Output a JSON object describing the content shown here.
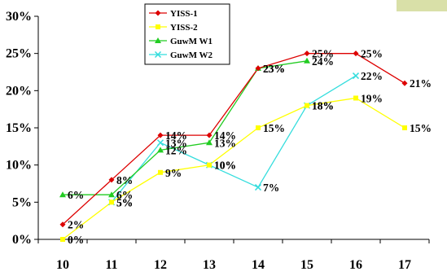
{
  "chart_data": {
    "type": "line",
    "categories": [
      "10",
      "11",
      "12",
      "13",
      "14",
      "15",
      "16",
      "17"
    ],
    "y_ticks": [
      "0%",
      "5%",
      "10%",
      "15%",
      "20%",
      "25%",
      "30%"
    ],
    "ylim": [
      0,
      30
    ],
    "grid": false,
    "legend_position": "top-left",
    "series": [
      {
        "name": "YISS-1",
        "color": "#dd0000",
        "marker": "diamond",
        "values": [
          2,
          8,
          14,
          14,
          23,
          25,
          25,
          21
        ],
        "labels": [
          "2%",
          "8%",
          "14%",
          "14%",
          "23%",
          "25%",
          "25%",
          "21%"
        ]
      },
      {
        "name": "YISS-2",
        "color": "#ffff00",
        "marker": "square",
        "values": [
          0,
          5,
          9,
          10,
          15,
          18,
          19,
          15
        ],
        "labels": [
          "0%",
          "5%",
          "9%",
          "10%",
          "15%",
          "18%",
          "19%",
          "15%"
        ]
      },
      {
        "name": "GuwM W1",
        "color": "#22cc22",
        "marker": "triangle",
        "values": [
          6,
          6,
          12,
          13,
          23,
          24,
          null,
          null
        ],
        "labels": [
          "6%",
          "6%",
          "12%",
          "13%",
          "23%",
          "24%",
          "",
          ""
        ]
      },
      {
        "name": "GuwM W2",
        "color": "#33dddd",
        "marker": "x",
        "values": [
          null,
          5,
          13,
          10,
          7,
          18,
          22,
          null
        ],
        "labels": [
          "",
          "5%",
          "13%",
          "10%",
          "7%",
          "18%",
          "22%",
          ""
        ]
      }
    ]
  }
}
